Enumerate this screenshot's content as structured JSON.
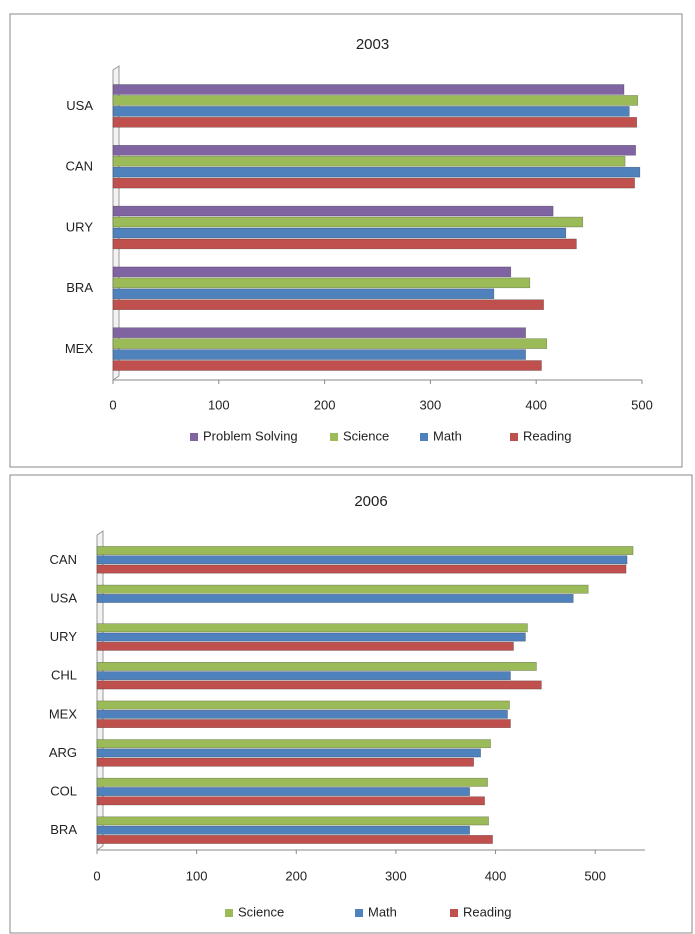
{
  "chart_data": [
    {
      "type": "bar",
      "orientation": "horizontal",
      "title": "2003",
      "categories": [
        "USA",
        "CAN",
        "URY",
        "BRA",
        "MEX"
      ],
      "series": [
        {
          "name": "Problem Solving",
          "color": "#8064a2",
          "values": [
            483,
            494,
            416,
            376,
            390
          ]
        },
        {
          "name": "Science",
          "color": "#9bbb59",
          "values": [
            496,
            484,
            444,
            394,
            410
          ]
        },
        {
          "name": "Math",
          "color": "#4f81bd",
          "values": [
            488,
            498,
            428,
            360,
            390
          ]
        },
        {
          "name": "Reading",
          "color": "#c0504d",
          "values": [
            495,
            493,
            438,
            407,
            405
          ]
        }
      ],
      "xlim": [
        0,
        500
      ],
      "xticks": [
        0,
        100,
        200,
        300,
        400,
        500
      ],
      "legend": "bottom",
      "grid": false
    },
    {
      "type": "bar",
      "orientation": "horizontal",
      "title": "2006",
      "categories": [
        "CAN",
        "USA",
        "URY",
        "CHL",
        "MEX",
        "ARG",
        "COL",
        "BRA"
      ],
      "series": [
        {
          "name": "Science",
          "color": "#9bbb59",
          "values": [
            538,
            493,
            432,
            441,
            414,
            395,
            392,
            393
          ]
        },
        {
          "name": "Math",
          "color": "#4f81bd",
          "values": [
            532,
            478,
            430,
            415,
            412,
            385,
            374,
            374
          ]
        },
        {
          "name": "Reading",
          "color": "#c0504d",
          "values": [
            531,
            null,
            418,
            446,
            415,
            378,
            389,
            397
          ]
        }
      ],
      "xlim": [
        0,
        550
      ],
      "xticks": [
        0,
        100,
        200,
        300,
        400,
        500
      ],
      "legend": "bottom",
      "grid": false
    }
  ]
}
